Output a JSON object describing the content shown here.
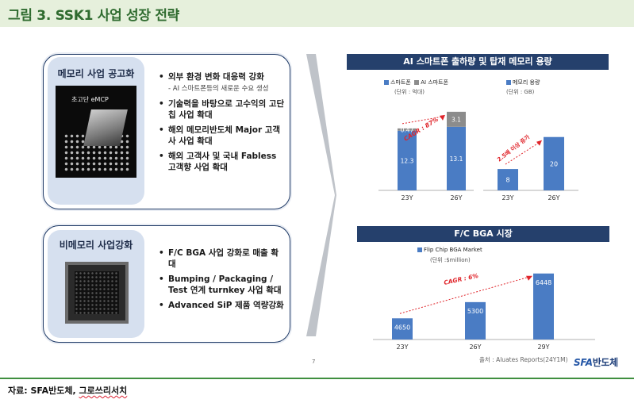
{
  "title": "그림 3. SSK1 사업 성장 전략",
  "memory_section": {
    "label": "메모리 사업 공고화",
    "photo_label": "초고단 eMCP",
    "bullets": [
      {
        "text": "외부 환경 변화 대응력 강화",
        "sub": "- AI 스마트폰등의 새로운 수요 생성"
      },
      {
        "text": "기술력을 바탕으로 고수익의 고단칩 사업 확대",
        "sub": ""
      },
      {
        "text": "해외 메모리반도체 Major 고객사 사업 확대",
        "sub": ""
      },
      {
        "text": "해외 고객사 및 국내 Fabless 고객향 사업 확대",
        "sub": ""
      }
    ]
  },
  "nonmemory_section": {
    "label": "비메모리 사업강화",
    "bullets": [
      {
        "text": "F/C BGA 사업 강화로 매출 확대",
        "sub": ""
      },
      {
        "text": "Bumping / Packaging / Test 연계 turnkey 사업 확대",
        "sub": ""
      },
      {
        "text": "Advanced SiP 제품 역량강화",
        "sub": ""
      }
    ]
  },
  "chart_data": [
    {
      "type": "bar",
      "title": "AI 스마트폰 출하량 및 탑재 메모리 용량",
      "categories": [
        "23Y",
        "26Y"
      ],
      "series": [
        {
          "name": "스마트폰",
          "values": [
            12.3,
            13.1
          ],
          "color": "#4a7cc4"
        },
        {
          "name": "AI 스마트폰",
          "values": [
            0.47,
            3.1
          ],
          "color": "#8c8c8c"
        }
      ],
      "stacked": true,
      "unit": "(단위 : 억대)",
      "annotation": "CAGR : 87%",
      "ylim": [
        0,
        17
      ]
    },
    {
      "type": "bar",
      "title": "",
      "categories": [
        "23Y",
        "26Y"
      ],
      "series": [
        {
          "name": "메모리 용량",
          "values": [
            8,
            20
          ],
          "color": "#4a7cc4"
        }
      ],
      "unit": "(단위 : GB)",
      "annotation": "2.5배 이상 증가",
      "ylim": [
        0,
        22
      ]
    },
    {
      "type": "bar",
      "title": "F/C BGA 시장",
      "categories": [
        "23Y",
        "26Y",
        "29Y"
      ],
      "series": [
        {
          "name": "Flip Chip BGA Market",
          "values": [
            4650,
            5300,
            6448
          ],
          "color": "#4a7cc4"
        }
      ],
      "unit": "(단위 :$million)",
      "annotation": "CAGR : 6%",
      "ylim": [
        3800,
        6600
      ]
    }
  ],
  "page_number": "7",
  "source": "출처 : Aluates Reports(24Y1M)",
  "logo": {
    "part1": "SFA",
    "part2": "반도체"
  },
  "footnote": {
    "prefix": "자료: SFA반도체, ",
    "squiggle": "그로쓰리서치"
  },
  "colors": {
    "accent": "#25406c",
    "bar": "#4a7cc4",
    "ai_bar": "#8c8c8c",
    "annotation": "#e0242a",
    "title_green": "#2f6b2f"
  }
}
